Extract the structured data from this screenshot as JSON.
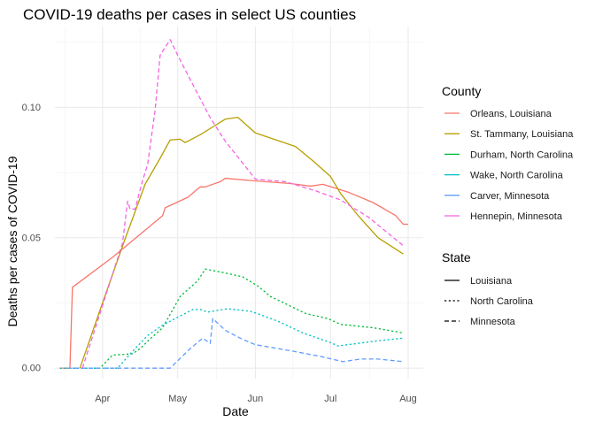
{
  "chart_data": {
    "type": "line",
    "title": "COVID-19 deaths per cases in select US counties",
    "xlabel": "Date",
    "ylabel": "Deaths per cases of COVID-19",
    "x_ticks": [
      {
        "date": "2020-04-01",
        "label": "Apr"
      },
      {
        "date": "2020-05-01",
        "label": "May"
      },
      {
        "date": "2020-06-01",
        "label": "Jun"
      },
      {
        "date": "2020-07-01",
        "label": "Jul"
      },
      {
        "date": "2020-08-01",
        "label": "Aug"
      }
    ],
    "y_ticks": [
      {
        "value": 0.0,
        "label": "0.00"
      },
      {
        "value": 0.05,
        "label": "0.05"
      },
      {
        "value": 0.1,
        "label": "0.10"
      }
    ],
    "xlim": [
      "2020-03-13",
      "2020-08-07"
    ],
    "ylim": [
      -0.004,
      0.131
    ],
    "grid": true,
    "legend_position": "right",
    "county_legend_title": "County",
    "state_legend_title": "State",
    "states": [
      {
        "name": "Louisiana",
        "linetype": "solid"
      },
      {
        "name": "North Carolina",
        "linetype": "dotted"
      },
      {
        "name": "Minnesota",
        "linetype": "dashed"
      }
    ],
    "series": [
      {
        "name": "Orleans, Louisiana",
        "state": "Louisiana",
        "color": "#F8766D",
        "points": [
          [
            "2020-03-16",
            0.0
          ],
          [
            "2020-03-19",
            0.0
          ],
          [
            "2020-03-20",
            0.031
          ],
          [
            "2020-04-05",
            0.0425
          ],
          [
            "2020-04-25",
            0.0585
          ],
          [
            "2020-04-26",
            0.0615
          ],
          [
            "2020-05-05",
            0.0655
          ],
          [
            "2020-05-10",
            0.0695
          ],
          [
            "2020-05-12",
            0.0695
          ],
          [
            "2020-05-18",
            0.0715
          ],
          [
            "2020-05-20",
            0.0728
          ],
          [
            "2020-06-01",
            0.0718
          ],
          [
            "2020-06-15",
            0.0708
          ],
          [
            "2020-06-23",
            0.0698
          ],
          [
            "2020-06-28",
            0.0705
          ],
          [
            "2020-07-08",
            0.0675
          ],
          [
            "2020-07-18",
            0.0635
          ],
          [
            "2020-07-27",
            0.0585
          ],
          [
            "2020-07-30",
            0.0552
          ],
          [
            "2020-08-01",
            0.0552
          ]
        ]
      },
      {
        "name": "St. Tammany, Louisiana",
        "state": "Louisiana",
        "color": "#B79F00",
        "points": [
          [
            "2020-03-23",
            0.0
          ],
          [
            "2020-04-01",
            0.025
          ],
          [
            "2020-04-10",
            0.0495
          ],
          [
            "2020-04-18",
            0.0705
          ],
          [
            "2020-04-24",
            0.0805
          ],
          [
            "2020-04-28",
            0.0875
          ],
          [
            "2020-05-02",
            0.0878
          ],
          [
            "2020-05-04",
            0.0865
          ],
          [
            "2020-05-10",
            0.0895
          ],
          [
            "2020-05-15",
            0.0925
          ],
          [
            "2020-05-20",
            0.0955
          ],
          [
            "2020-05-25",
            0.0962
          ],
          [
            "2020-06-01",
            0.0902
          ],
          [
            "2020-06-17",
            0.085
          ],
          [
            "2020-06-24",
            0.0795
          ],
          [
            "2020-07-01",
            0.0735
          ],
          [
            "2020-07-05",
            0.067
          ],
          [
            "2020-07-12",
            0.0585
          ],
          [
            "2020-07-20",
            0.05
          ],
          [
            "2020-07-30",
            0.0438
          ]
        ]
      },
      {
        "name": "Durham, North Carolina",
        "state": "North Carolina",
        "color": "#00BA38",
        "points": [
          [
            "2020-03-15",
            0.0
          ],
          [
            "2020-03-31",
            0.0
          ],
          [
            "2020-04-05",
            0.005
          ],
          [
            "2020-04-13",
            0.0055
          ],
          [
            "2020-04-16",
            0.0075
          ],
          [
            "2020-04-20",
            0.0112
          ],
          [
            "2020-04-25",
            0.0155
          ],
          [
            "2020-05-02",
            0.0275
          ],
          [
            "2020-05-09",
            0.0335
          ],
          [
            "2020-05-12",
            0.038
          ],
          [
            "2020-05-20",
            0.0365
          ],
          [
            "2020-05-27",
            0.035
          ],
          [
            "2020-06-02",
            0.0315
          ],
          [
            "2020-06-07",
            0.0275
          ],
          [
            "2020-06-21",
            0.021
          ],
          [
            "2020-06-30",
            0.019
          ],
          [
            "2020-07-05",
            0.0168
          ],
          [
            "2020-07-18",
            0.0155
          ],
          [
            "2020-07-30",
            0.0135
          ]
        ]
      },
      {
        "name": "Wake, North Carolina",
        "state": "North Carolina",
        "color": "#00BFC4",
        "points": [
          [
            "2020-03-15",
            0.0
          ],
          [
            "2020-04-07",
            0.0
          ],
          [
            "2020-04-14",
            0.0075
          ],
          [
            "2020-04-19",
            0.0125
          ],
          [
            "2020-04-25",
            0.0165
          ],
          [
            "2020-05-01",
            0.0195
          ],
          [
            "2020-05-07",
            0.0225
          ],
          [
            "2020-05-10",
            0.0225
          ],
          [
            "2020-05-13",
            0.0215
          ],
          [
            "2020-05-21",
            0.0228
          ],
          [
            "2020-05-30",
            0.0218
          ],
          [
            "2020-06-01",
            0.0212
          ],
          [
            "2020-06-10",
            0.018
          ],
          [
            "2020-06-20",
            0.0135
          ],
          [
            "2020-07-01",
            0.0098
          ],
          [
            "2020-07-04",
            0.0085
          ],
          [
            "2020-07-12",
            0.0095
          ],
          [
            "2020-07-20",
            0.0105
          ],
          [
            "2020-07-30",
            0.0115
          ]
        ]
      },
      {
        "name": "Carver, Minnesota",
        "state": "Minnesota",
        "color": "#619CFF",
        "points": [
          [
            "2020-03-18",
            0.0
          ],
          [
            "2020-04-28",
            0.0
          ],
          [
            "2020-05-06",
            0.0075
          ],
          [
            "2020-05-11",
            0.0115
          ],
          [
            "2020-05-14",
            0.0095
          ],
          [
            "2020-05-15",
            0.019
          ],
          [
            "2020-05-20",
            0.0145
          ],
          [
            "2020-05-27",
            0.011
          ],
          [
            "2020-06-01",
            0.009
          ],
          [
            "2020-06-16",
            0.0065
          ],
          [
            "2020-06-27",
            0.0045
          ],
          [
            "2020-07-06",
            0.0025
          ],
          [
            "2020-07-13",
            0.0035
          ],
          [
            "2020-07-20",
            0.0035
          ],
          [
            "2020-07-30",
            0.0025
          ]
        ]
      },
      {
        "name": "Hennepin, Minnesota",
        "state": "Minnesota",
        "color": "#F564E3",
        "points": [
          [
            "2020-03-24",
            0.0
          ],
          [
            "2020-04-09",
            0.048
          ],
          [
            "2020-04-11",
            0.064
          ],
          [
            "2020-04-12",
            0.061
          ],
          [
            "2020-04-14",
            0.061
          ],
          [
            "2020-04-17",
            0.072
          ],
          [
            "2020-04-19",
            0.078
          ],
          [
            "2020-04-22",
            0.099
          ],
          [
            "2020-04-24",
            0.12
          ],
          [
            "2020-04-28",
            0.126
          ],
          [
            "2020-05-01",
            0.12
          ],
          [
            "2020-05-08",
            0.107
          ],
          [
            "2020-05-14",
            0.096
          ],
          [
            "2020-05-20",
            0.087
          ],
          [
            "2020-05-25",
            0.081
          ],
          [
            "2020-06-01",
            0.0725
          ],
          [
            "2020-06-13",
            0.0715
          ],
          [
            "2020-06-25",
            0.068
          ],
          [
            "2020-07-05",
            0.0645
          ],
          [
            "2020-07-16",
            0.058
          ],
          [
            "2020-07-30",
            0.047
          ]
        ]
      }
    ]
  }
}
